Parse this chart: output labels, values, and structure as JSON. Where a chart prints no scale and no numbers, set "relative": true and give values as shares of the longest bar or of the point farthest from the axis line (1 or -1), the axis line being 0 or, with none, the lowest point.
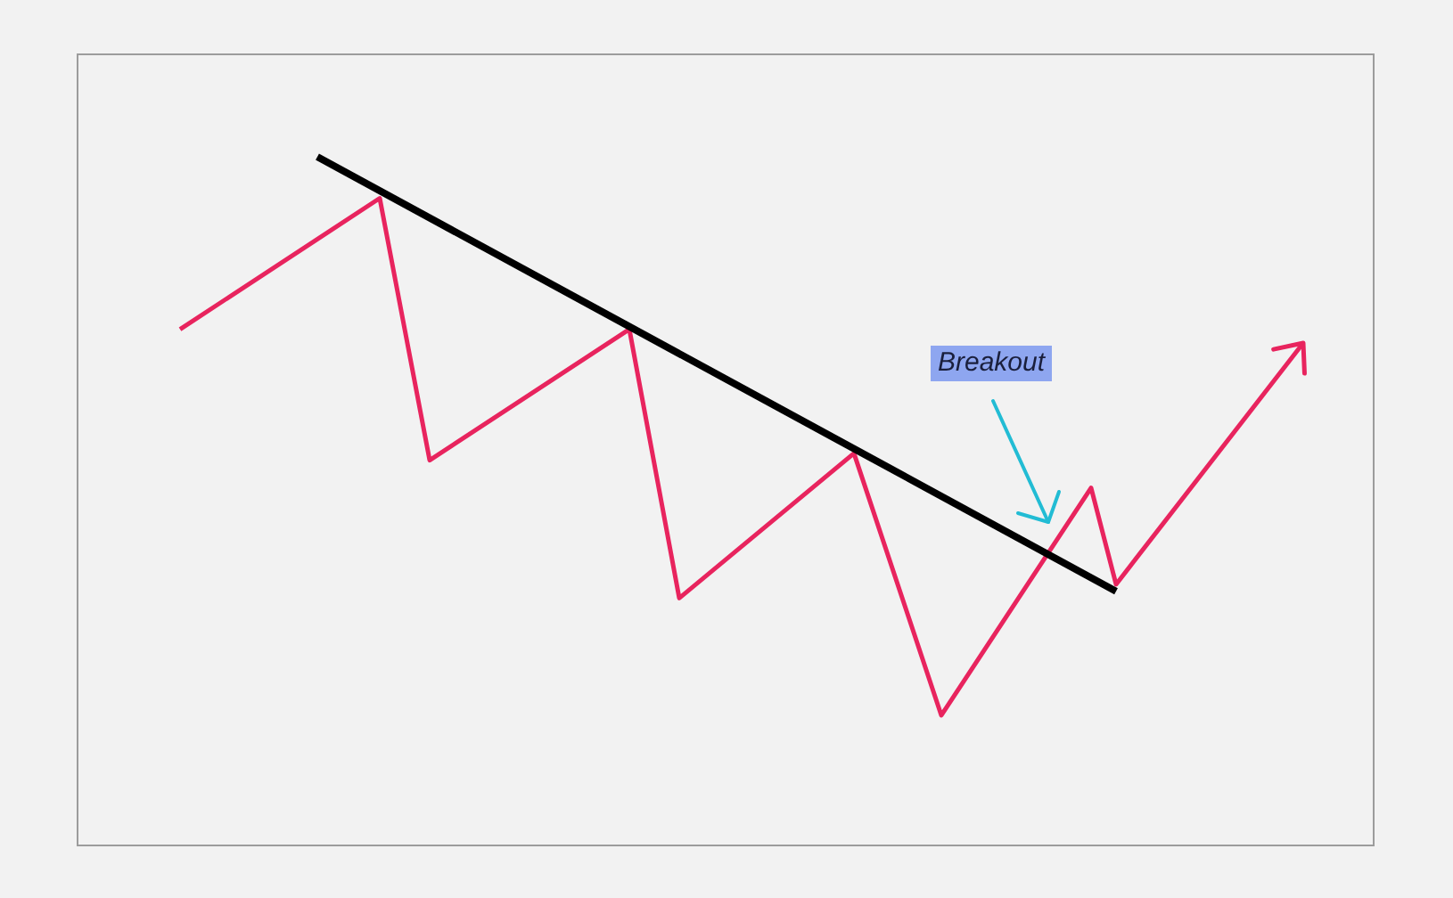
{
  "chart_data": {
    "type": "line",
    "relative": true,
    "marker": "none",
    "categories": [
      null,
      null,
      null,
      null,
      null,
      null,
      null,
      null,
      null,
      null,
      null,
      null,
      null,
      null,
      null,
      null,
      null,
      null,
      null,
      null,
      null,
      null,
      null,
      null,
      null,
      null,
      null,
      null,
      null,
      null,
      null,
      null,
      null,
      null,
      null,
      null,
      null,
      null,
      null,
      null,
      null,
      null,
      null,
      null,
      null,
      null,
      null,
      null,
      null,
      null,
      null,
      null,
      null,
      null,
      null,
      null,
      null,
      null,
      null,
      null,
      null,
      null,
      null,
      null,
      null,
      null,
      null,
      null,
      null,
      null,
      null,
      null,
      null,
      null,
      null,
      null,
      null,
      null,
      null,
      null,
      null,
      null,
      null,
      null,
      null,
      null,
      null,
      null,
      null,
      null,
      null
    ],
    "series": [
      {
        "color": "#e8245e",
        "values": [
          0.75,
          null,
          null,
          null,
          null,
          null,
          null,
          null,
          null,
          null,
          null,
          null,
          null,
          null,
          null,
          null,
          0.94,
          null,
          null,
          null,
          0.56,
          null,
          null,
          null,
          null,
          null,
          null,
          null,
          null,
          null,
          null,
          null,
          null,
          null,
          null,
          null,
          0.75,
          null,
          null,
          null,
          0.36,
          null,
          null,
          null,
          null,
          null,
          null,
          null,
          null,
          null,
          null,
          null,
          null,
          null,
          0.57,
          null,
          null,
          null,
          null,
          null,
          null,
          0.19,
          null,
          null,
          null,
          null,
          null,
          null,
          null,
          null,
          null,
          null,
          null,
          0.52,
          null,
          0.38,
          null,
          null,
          null,
          null,
          null,
          null,
          null,
          null,
          null,
          null,
          null,
          null,
          null,
          null,
          0.73
        ]
      },
      {
        "color": "#000000",
        "values": [
          null,
          null,
          null,
          null,
          null,
          null,
          null,
          null,
          null,
          null,
          null,
          1,
          null,
          null,
          null,
          null,
          null,
          null,
          null,
          null,
          null,
          null,
          null,
          null,
          null,
          null,
          null,
          null,
          null,
          null,
          null,
          null,
          null,
          null,
          null,
          null,
          null,
          null,
          null,
          null,
          null,
          null,
          null,
          null,
          null,
          null,
          null,
          null,
          null,
          null,
          null,
          null,
          null,
          null,
          null,
          null,
          null,
          null,
          null,
          null,
          null,
          null,
          null,
          null,
          null,
          null,
          null,
          null,
          null,
          null,
          null,
          null,
          null,
          null,
          null,
          0.37,
          null,
          null,
          null,
          null,
          null,
          null,
          null,
          null,
          null,
          null,
          null,
          null,
          null,
          null,
          null
        ]
      }
    ],
    "annotations": [
      "Breakout"
    ]
  }
}
